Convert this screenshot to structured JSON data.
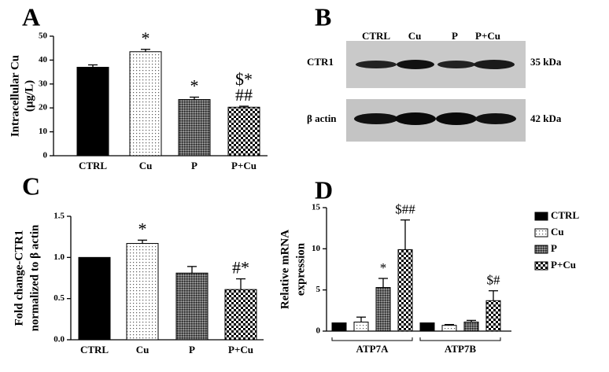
{
  "chart_data": [
    {
      "type": "bar",
      "label": "A",
      "ylabel": [
        "Intracellular Cu",
        "(μg/L)"
      ],
      "categories": [
        "CTRL",
        "Cu",
        "P",
        "P+Cu"
      ],
      "values": [
        37,
        43.5,
        23.5,
        20.3
      ],
      "errors": [
        1,
        1,
        1,
        0.4
      ],
      "patterns": [
        "solid",
        "dots",
        "hatch",
        "checker"
      ],
      "annotations": [
        null,
        [
          "*"
        ],
        [
          "*"
        ],
        [
          "$*",
          "##"
        ]
      ],
      "ylim": [
        0,
        50
      ],
      "yticks": [
        0,
        10,
        20,
        30,
        40,
        50
      ]
    },
    {
      "type": "blot",
      "label": "B",
      "columns": [
        "CTRL",
        "Cu",
        "P",
        "P+Cu"
      ],
      "rows": [
        {
          "name": "CTR1",
          "size": "35 kDa"
        },
        {
          "name": "β actin",
          "size": "42 kDa"
        }
      ]
    },
    {
      "type": "bar",
      "label": "C",
      "ylabel": [
        "Fold change-CTR1",
        "normalized to β actin"
      ],
      "categories": [
        "CTRL",
        "Cu",
        "P",
        "P+Cu"
      ],
      "values": [
        1.0,
        1.17,
        0.81,
        0.61
      ],
      "errors": [
        null,
        0.04,
        0.08,
        0.13
      ],
      "patterns": [
        "solid",
        "dots",
        "hatch",
        "checker"
      ],
      "annotations": [
        null,
        [
          "*"
        ],
        null,
        [
          "#*"
        ]
      ],
      "ylim": [
        0,
        1.5
      ],
      "yticks": [
        {
          "value": 0,
          "label": "0.0"
        },
        {
          "value": 0.5,
          "label": "0.5"
        },
        {
          "value": 1,
          "label": "1.0"
        },
        {
          "value": 1.5,
          "label": "1.5"
        }
      ]
    },
    {
      "type": "grouped_bar",
      "label": "D",
      "ylabel": [
        "Relative mRNA",
        "expression"
      ],
      "categories": [
        "ATP7A",
        "ATP7B"
      ],
      "series": [
        {
          "name": "CTRL",
          "pattern": "solid",
          "values": [
            1,
            1
          ],
          "errors": [
            null,
            null
          ],
          "annotations": [
            null,
            null
          ]
        },
        {
          "name": "Cu",
          "pattern": "dots",
          "values": [
            1.1,
            0.7
          ],
          "errors": [
            0.6,
            0.1
          ],
          "annotations": [
            null,
            null
          ]
        },
        {
          "name": "P",
          "pattern": "hatch",
          "values": [
            5.3,
            1.1
          ],
          "errors": [
            1.1,
            0.2
          ],
          "annotations": [
            "*",
            null
          ]
        },
        {
          "name": "P+Cu",
          "pattern": "checker",
          "values": [
            9.9,
            3.7
          ],
          "errors": [
            3.6,
            1.2
          ],
          "annotations": [
            "$##",
            "$#"
          ]
        }
      ],
      "ylim": [
        0,
        15
      ],
      "yticks": [
        0,
        5,
        10,
        15
      ],
      "legend": "right"
    }
  ]
}
